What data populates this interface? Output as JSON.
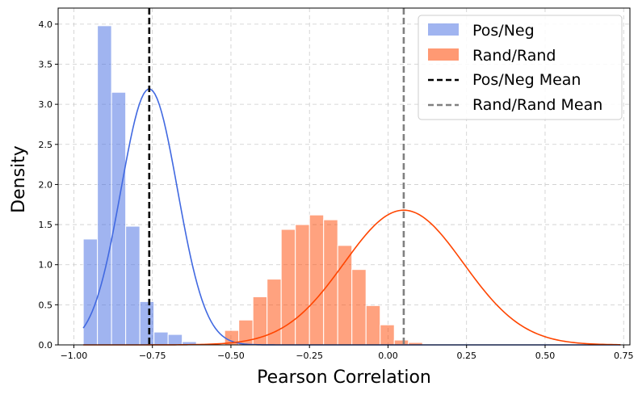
{
  "colors": {
    "pos_neg": "#4169e1",
    "rand_rand": "#ff4500",
    "pos_neg_mean": "#000000",
    "rand_rand_mean": "#808080"
  },
  "chart_data": {
    "type": "histogram",
    "xlabel": "Pearson Correlation",
    "ylabel": "Density",
    "xlim": [
      -1.05,
      0.77
    ],
    "ylim": [
      0,
      4.2
    ],
    "xticks": [
      -1.0,
      -0.75,
      -0.5,
      -0.25,
      0.0,
      0.25,
      0.5,
      0.75
    ],
    "xtick_labels": [
      "−1.00",
      "−0.75",
      "−0.50",
      "−0.25",
      "0.00",
      "0.25",
      "0.50",
      "0.75"
    ],
    "yticks": [
      0,
      0.5,
      1.0,
      1.5,
      2.0,
      2.5,
      3.0,
      3.5,
      4.0
    ],
    "ytick_labels": [
      "0.0",
      "0.5",
      "1.0",
      "1.5",
      "2.0",
      "2.5",
      "3.0",
      "3.5",
      "4.0"
    ],
    "grid": true,
    "legend_position": "top-right",
    "series": [
      {
        "name": "Pos/Neg",
        "kind": "histogram",
        "bins": [
          {
            "x0": -0.97,
            "x1": -0.925,
            "density": 1.32
          },
          {
            "x0": -0.925,
            "x1": -0.88,
            "density": 3.98
          },
          {
            "x0": -0.88,
            "x1": -0.835,
            "density": 3.15
          },
          {
            "x0": -0.835,
            "x1": -0.79,
            "density": 1.48
          },
          {
            "x0": -0.79,
            "x1": -0.745,
            "density": 0.54
          },
          {
            "x0": -0.745,
            "x1": -0.7,
            "density": 0.16
          },
          {
            "x0": -0.7,
            "x1": -0.655,
            "density": 0.13
          },
          {
            "x0": -0.655,
            "x1": -0.61,
            "density": 0.04
          }
        ],
        "kde": {
          "mean": -0.76,
          "std": 0.09,
          "scale": 0.72,
          "x_start": -0.97,
          "x_end": 0.74
        }
      },
      {
        "name": "Rand/Rand",
        "kind": "histogram",
        "bins": [
          {
            "x0": -0.52,
            "x1": -0.475,
            "density": 0.18
          },
          {
            "x0": -0.475,
            "x1": -0.43,
            "density": 0.31
          },
          {
            "x0": -0.43,
            "x1": -0.385,
            "density": 0.6
          },
          {
            "x0": -0.385,
            "x1": -0.34,
            "density": 0.82
          },
          {
            "x0": -0.34,
            "x1": -0.295,
            "density": 1.44
          },
          {
            "x0": -0.295,
            "x1": -0.25,
            "density": 1.5
          },
          {
            "x0": -0.25,
            "x1": -0.205,
            "density": 1.62
          },
          {
            "x0": -0.205,
            "x1": -0.16,
            "density": 1.56
          },
          {
            "x0": -0.16,
            "x1": -0.115,
            "density": 1.24
          },
          {
            "x0": -0.115,
            "x1": -0.07,
            "density": 0.94
          },
          {
            "x0": -0.07,
            "x1": -0.025,
            "density": 0.49
          },
          {
            "x0": -0.025,
            "x1": 0.02,
            "density": 0.25
          },
          {
            "x0": 0.02,
            "x1": 0.065,
            "density": 0.06
          },
          {
            "x0": 0.065,
            "x1": 0.11,
            "density": 0.03
          }
        ],
        "kde": {
          "mean": 0.05,
          "std": 0.19,
          "scale": 0.8,
          "x_start": -0.97,
          "x_end": 0.74
        }
      }
    ],
    "vlines": [
      {
        "name": "Pos/Neg Mean",
        "x": -0.76,
        "style": "dashed"
      },
      {
        "name": "Rand/Rand Mean",
        "x": 0.05,
        "style": "dashed"
      }
    ],
    "legend": [
      "Pos/Neg",
      "Rand/Rand",
      "Pos/Neg Mean",
      "Rand/Rand Mean"
    ]
  }
}
